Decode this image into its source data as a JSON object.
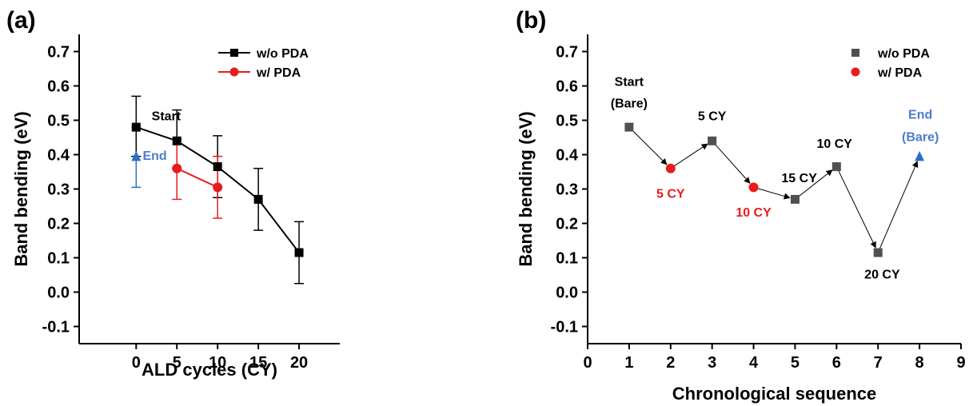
{
  "colors": {
    "black_series": "#000000",
    "gray_series": "#505050",
    "red_series": "#e81c1c",
    "blue_marker": "#2b6fce",
    "blue_text": "#4a7ec8",
    "red_text": "#e81c1c",
    "axis": "#000000"
  },
  "chart_data": [
    {
      "type": "line",
      "panel_label": "(a)",
      "xlabel": "ALD cycles (CY)",
      "ylabel": "Band bending (eV)",
      "xlim": [
        -7,
        25
      ],
      "ylim": [
        -0.15,
        0.75
      ],
      "xticks": [
        0,
        5,
        10,
        15,
        20
      ],
      "yticks": [
        -0.1,
        0.0,
        0.1,
        0.2,
        0.3,
        0.4,
        0.5,
        0.6,
        0.7
      ],
      "ytick_labels": [
        "-0.1",
        "0.0",
        "0.1",
        "0.2",
        "0.3",
        "0.4",
        "0.5",
        "0.6",
        "0.7"
      ],
      "legend_position": "top-right",
      "series": [
        {
          "name": "w/o PDA",
          "color": "#000000",
          "marker": "square",
          "x": [
            0,
            5,
            10,
            15,
            20
          ],
          "y": [
            0.48,
            0.44,
            0.365,
            0.27,
            0.115
          ],
          "err_low": [
            0.395,
            0.36,
            0.275,
            0.18,
            0.025
          ],
          "err_high": [
            0.57,
            0.53,
            0.455,
            0.36,
            0.205
          ]
        },
        {
          "name": "w/ PDA",
          "color": "#e81c1c",
          "marker": "circle",
          "x": [
            5,
            10
          ],
          "y": [
            0.36,
            0.305
          ],
          "err_low": [
            0.27,
            0.215
          ],
          "err_high": [
            0.445,
            0.395
          ]
        }
      ],
      "extra_point": {
        "x": 0,
        "y": 0.395,
        "err_low": 0.305,
        "err_high": 0.48,
        "color": "#2b6fce",
        "marker": "triangle"
      },
      "annotations": [
        {
          "text": "Start",
          "x": 1.9,
          "y": 0.5,
          "color": "#000000",
          "anchor": "start"
        },
        {
          "text": "End",
          "x": 0.8,
          "y": 0.385,
          "color": "#4a7ec8",
          "anchor": "start"
        }
      ]
    },
    {
      "type": "scatter",
      "panel_label": "(b)",
      "xlabel": "Chronological sequence",
      "ylabel": "Band bending (eV)",
      "xlim": [
        0,
        9
      ],
      "ylim": [
        -0.15,
        0.75
      ],
      "xticks": [
        0,
        1,
        2,
        3,
        4,
        5,
        6,
        7,
        8,
        9
      ],
      "yticks": [
        -0.1,
        0.0,
        0.1,
        0.2,
        0.3,
        0.4,
        0.5,
        0.6,
        0.7
      ],
      "ytick_labels": [
        "-0.1",
        "0.0",
        "0.1",
        "0.2",
        "0.3",
        "0.4",
        "0.5",
        "0.6",
        "0.7"
      ],
      "legend_position": "top-right",
      "series": [
        {
          "name": "w/o PDA",
          "color": "#505050",
          "marker": "square",
          "x": [
            1,
            3,
            5,
            6,
            7
          ],
          "y": [
            0.48,
            0.44,
            0.27,
            0.365,
            0.115
          ]
        },
        {
          "name": "w/ PDA",
          "color": "#e81c1c",
          "marker": "circle",
          "x": [
            2,
            4
          ],
          "y": [
            0.36,
            0.305
          ]
        }
      ],
      "extra_point": {
        "x": 8,
        "y": 0.395,
        "color": "#2b6fce",
        "marker": "triangle"
      },
      "sequence": {
        "x": [
          1,
          2,
          3,
          4,
          5,
          6,
          7,
          8
        ],
        "y": [
          0.48,
          0.36,
          0.44,
          0.305,
          0.27,
          0.365,
          0.115,
          0.395
        ]
      },
      "annotations": [
        {
          "text": "Start",
          "x": 1.0,
          "y": 0.6,
          "color": "#000000",
          "anchor": "middle"
        },
        {
          "text": "(Bare)",
          "x": 1.0,
          "y": 0.537,
          "color": "#000000",
          "anchor": "middle"
        },
        {
          "text": "5 CY",
          "x": 2.0,
          "y": 0.275,
          "color": "#e81c1c",
          "anchor": "middle"
        },
        {
          "text": "5 CY",
          "x": 3.0,
          "y": 0.5,
          "color": "#000000",
          "anchor": "middle"
        },
        {
          "text": "10 CY",
          "x": 4.0,
          "y": 0.22,
          "color": "#e81c1c",
          "anchor": "middle"
        },
        {
          "text": "15 CY",
          "x": 5.1,
          "y": 0.32,
          "color": "#000000",
          "anchor": "middle"
        },
        {
          "text": "10 CY",
          "x": 5.95,
          "y": 0.42,
          "color": "#000000",
          "anchor": "middle"
        },
        {
          "text": "20 CY",
          "x": 7.1,
          "y": 0.04,
          "color": "#000000",
          "anchor": "middle"
        },
        {
          "text": "End",
          "x": 8.02,
          "y": 0.505,
          "color": "#4a7ec8",
          "anchor": "middle"
        },
        {
          "text": "(Bare)",
          "x": 8.02,
          "y": 0.44,
          "color": "#4a7ec8",
          "anchor": "middle"
        }
      ]
    }
  ]
}
